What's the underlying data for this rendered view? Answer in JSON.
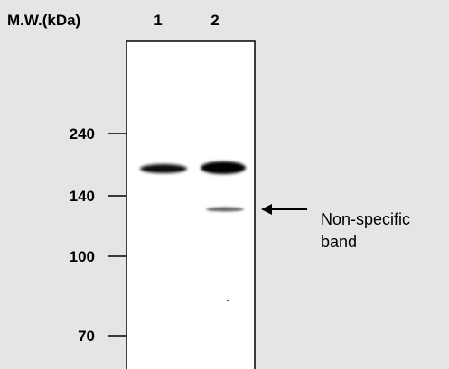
{
  "header": {
    "title": "M.W.(kDa)",
    "lanes": [
      "1",
      "2"
    ]
  },
  "markers": [
    "240",
    "140",
    "100",
    "70"
  ],
  "annotation": {
    "lines": [
      "Non-specific",
      "band"
    ]
  }
}
